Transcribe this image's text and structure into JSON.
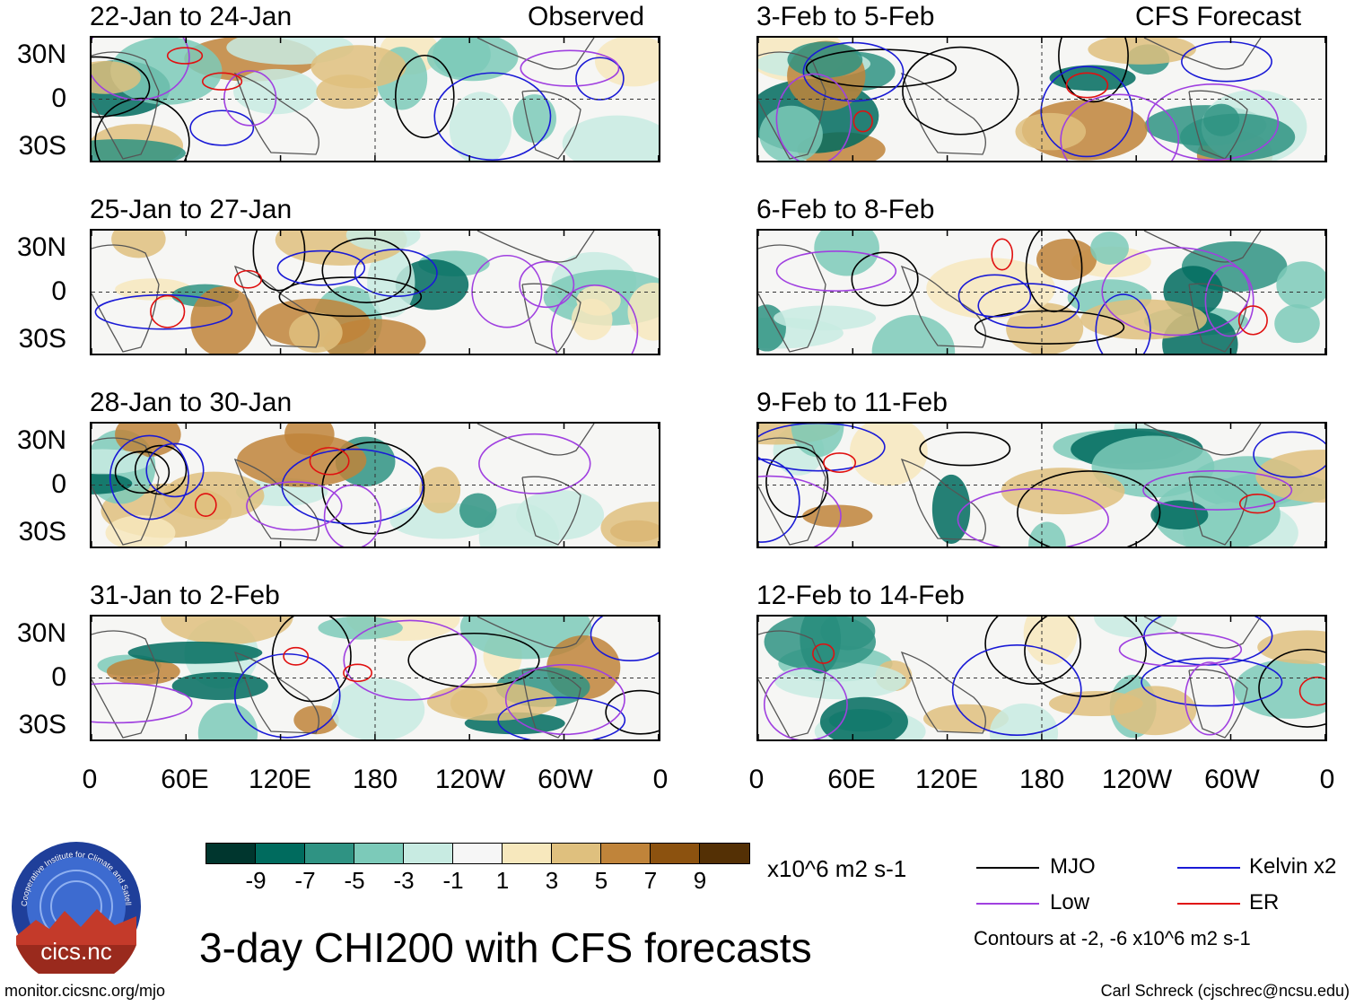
{
  "header": {
    "left_label": "Observed",
    "right_label": "CFS Forecast"
  },
  "panels": {
    "observed": [
      "22-Jan to 24-Jan",
      "25-Jan to 27-Jan",
      "28-Jan to 30-Jan",
      "31-Jan to 2-Feb"
    ],
    "forecast": [
      "3-Feb to 5-Feb",
      "6-Feb to 8-Feb",
      "9-Feb to 11-Feb",
      "12-Feb to 14-Feb"
    ]
  },
  "axes": {
    "lat_labels": [
      "30N",
      "0",
      "30S"
    ],
    "lon_labels": [
      "0",
      "60E",
      "120E",
      "180",
      "120W",
      "60W",
      "0"
    ]
  },
  "colorbar": {
    "colors": [
      "#00362e",
      "#006b5e",
      "#2f9383",
      "#7ccab9",
      "#c8ebe2",
      "#f6f6f6",
      "#f7e8bd",
      "#dfc07e",
      "#c0843a",
      "#8c520f",
      "#543005"
    ],
    "labels": [
      "-9",
      "-7",
      "-5",
      "-3",
      "-1",
      "1",
      "3",
      "5",
      "7",
      "9"
    ],
    "units": "x10^6 m2 s-1"
  },
  "legend": {
    "items": [
      {
        "label": "MJO",
        "color": "#000000"
      },
      {
        "label": "Kelvin x2",
        "color": "#1a1ad6"
      },
      {
        "label": "Low",
        "color": "#a040e0"
      },
      {
        "label": "ER",
        "color": "#e01010"
      }
    ],
    "contours_note": "Contours at -2, -6 x10^6 m2 s-1"
  },
  "title": "3-day CHI200 with CFS forecasts",
  "logo": {
    "text": "cics.nc",
    "ring_text": "Cooperative Institute for Climate and Satellites"
  },
  "footer": {
    "url": "monitor.cicsnc.org/mjo",
    "credit": "Carl Schreck (cjschrec@ncsu.edu)"
  }
}
